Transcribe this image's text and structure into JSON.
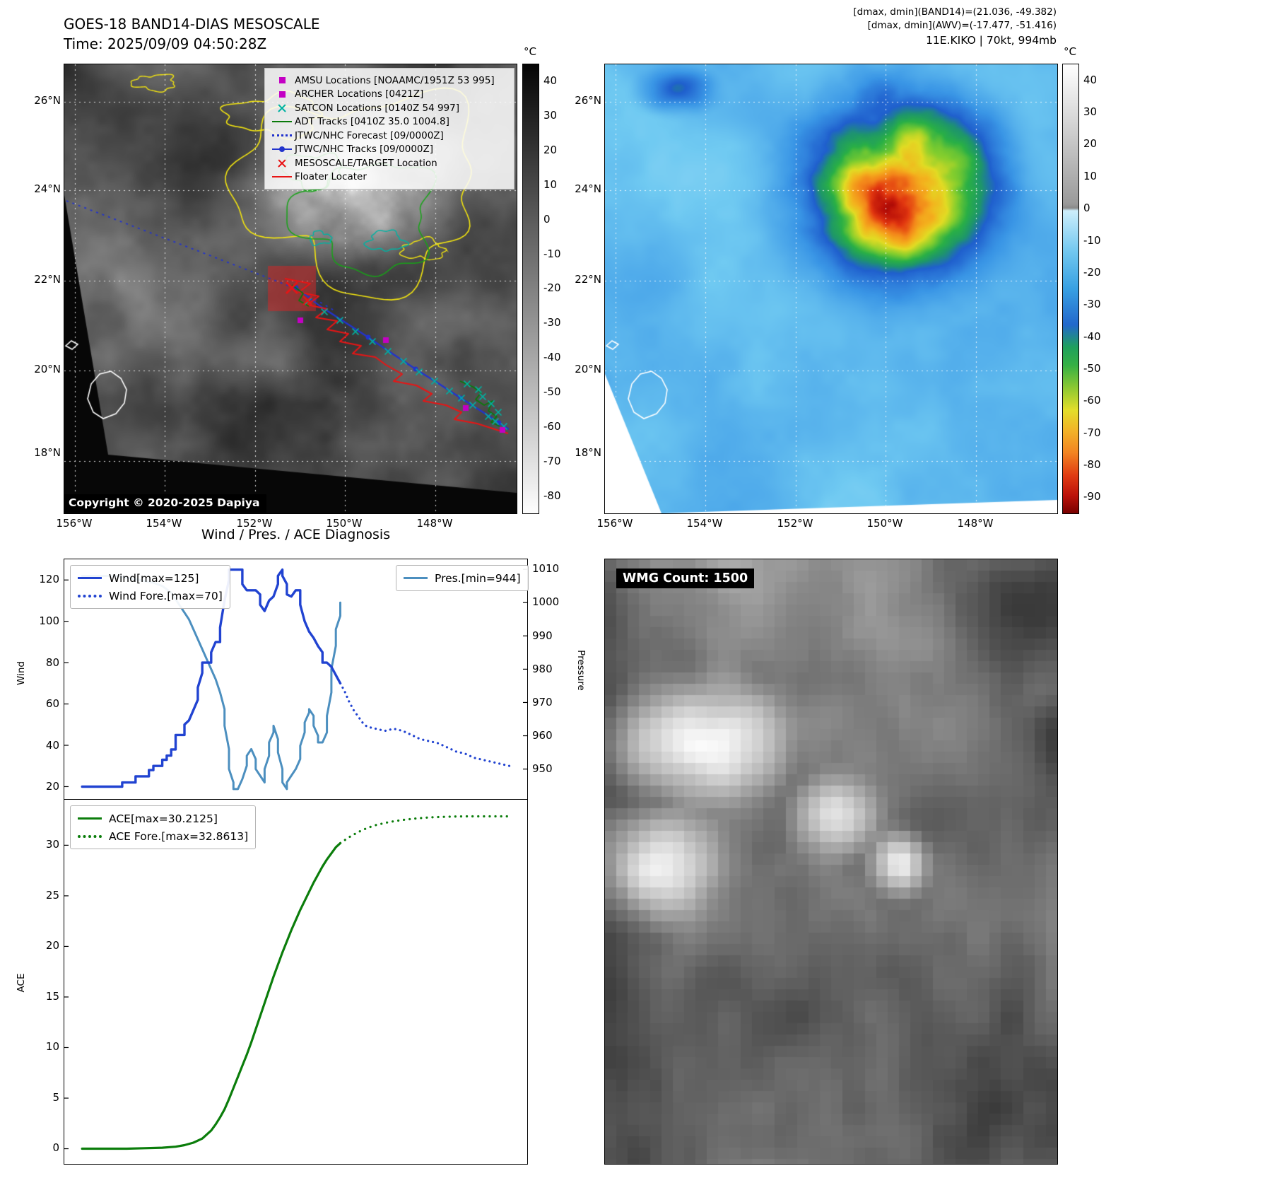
{
  "panel_tl": {
    "title_line1": "GOES-18 BAND14-DIAS MESOSCALE",
    "title_line2": "Time: 2025/09/09 04:50:28Z",
    "copyright": "Copyright © 2020-2025 Dapiya",
    "colorbar_unit": "°C",
    "lat_ticks": [
      "26°N",
      "24°N",
      "22°N",
      "20°N",
      "18°N"
    ],
    "lon_ticks": [
      "156°W",
      "154°W",
      "152°W",
      "150°W",
      "148°W"
    ],
    "colorbar_ticks": [
      "40",
      "30",
      "20",
      "10",
      "0",
      "-10",
      "-20",
      "-30",
      "-40",
      "-50",
      "-60",
      "-70",
      "-80"
    ],
    "legend": [
      {
        "marker": "magenta-square",
        "label": "AMSU Locations [NOAAMC/1951Z 53 995]"
      },
      {
        "marker": "magenta-square",
        "label": "ARCHER Locations [0421Z]"
      },
      {
        "marker": "teal-x",
        "label": "SATCON Locations [0140Z 54 997]"
      },
      {
        "marker": "green-line",
        "label": "ADT Tracks [0410Z 35.0 1004.8]"
      },
      {
        "marker": "blue-dotted-line",
        "label": "JTWC/NHC Forecast [09/0000Z]"
      },
      {
        "marker": "blue-line-dot",
        "label": "JTWC/NHC Tracks [09/0000Z]"
      },
      {
        "marker": "red-x",
        "label": "MESOSCALE/TARGET Location"
      },
      {
        "marker": "red-line",
        "label": "Floater Locater"
      }
    ]
  },
  "panel_tr": {
    "header_line1": "[dmax, dmin](BAND14)=(21.036, -49.382)",
    "header_line2": "[dmax, dmin](AWV)=(-17.477, -51.416)",
    "header_line3": "11E.KIKO | 70kt, 994mb",
    "colorbar_unit": "°C",
    "lat_ticks": [
      "26°N",
      "24°N",
      "22°N",
      "20°N",
      "18°N"
    ],
    "lon_ticks": [
      "156°W",
      "154°W",
      "152°W",
      "150°W",
      "148°W"
    ],
    "colorbar_ticks": [
      "40",
      "30",
      "20",
      "10",
      "0",
      "-10",
      "-20",
      "-30",
      "-40",
      "-50",
      "-60",
      "-70",
      "-80",
      "-90"
    ]
  },
  "charts": {
    "title": "Wind / Pres. / ACE Diagnosis",
    "wind": {
      "ylabel": "Wind",
      "y2label": "Pressure",
      "yticks": [
        "120",
        "100",
        "80",
        "60",
        "40",
        "20"
      ],
      "y2ticks": [
        "1010",
        "1000",
        "990",
        "980",
        "970",
        "960",
        "950"
      ],
      "legend_wind": "Wind[max=125]",
      "legend_wind_fore": "Wind Fore.[max=70]",
      "legend_pres": "Pres.[min=944]"
    },
    "ace": {
      "ylabel": "ACE",
      "yticks": [
        "30",
        "25",
        "20",
        "15",
        "10",
        "5",
        "0"
      ],
      "legend_ace": "ACE[max=30.2125]",
      "legend_ace_fore": "ACE Fore.[max=32.8613]"
    }
  },
  "panel_br": {
    "label": "WMG Count: 1500"
  },
  "colors": {
    "wind": "#2143d1",
    "pres": "#4c8fbf",
    "ace": "#0b7d0b",
    "contour_yellow": "#f2e410",
    "contour_green": "#17a317",
    "contour_teal": "#00b2a2",
    "track_red": "#e81515",
    "track_blue": "#2233cc",
    "satcon_teal": "#00b2a2",
    "amsu_magenta": "#c400c4",
    "adt_green": "#0a7a0a",
    "grid_white": "#ffffff"
  },
  "chart_data": [
    {
      "type": "line",
      "title": "Wind / Pres. / ACE Diagnosis",
      "ylabel": "Wind",
      "y2label": "Pressure",
      "ylim": [
        14,
        130
      ],
      "y2lim": [
        941,
        1013
      ],
      "xlim": [
        0,
        104
      ],
      "series": [
        {
          "name": "Wind[max=125]",
          "axis": "wind",
          "style": "solid",
          "points": [
            [
              4,
              20
            ],
            [
              13,
              20
            ],
            [
              13,
              22
            ],
            [
              16,
              22
            ],
            [
              16,
              25
            ],
            [
              19,
              25
            ],
            [
              19,
              28
            ],
            [
              20,
              28
            ],
            [
              20,
              30
            ],
            [
              22,
              30
            ],
            [
              22,
              33
            ],
            [
              23,
              33
            ],
            [
              23,
              35
            ],
            [
              24,
              35
            ],
            [
              24,
              38
            ],
            [
              25,
              38
            ],
            [
              25,
              45
            ],
            [
              27,
              45
            ],
            [
              27,
              50
            ],
            [
              28,
              52
            ],
            [
              29,
              57
            ],
            [
              30,
              62
            ],
            [
              30,
              68
            ],
            [
              31,
              75
            ],
            [
              31,
              80
            ],
            [
              33,
              80
            ],
            [
              33,
              85
            ],
            [
              34,
              90
            ],
            [
              35,
              90
            ],
            [
              35,
              97
            ],
            [
              36,
              110
            ],
            [
              37,
              120
            ],
            [
              37,
              125
            ],
            [
              40,
              125
            ],
            [
              40,
              118
            ],
            [
              41,
              115
            ],
            [
              43,
              115
            ],
            [
              44,
              113
            ],
            [
              44,
              108
            ],
            [
              45,
              105
            ],
            [
              46,
              110
            ],
            [
              47,
              112
            ],
            [
              48,
              118
            ],
            [
              48,
              122
            ],
            [
              49,
              125
            ],
            [
              49,
              122
            ],
            [
              50,
              118
            ],
            [
              50,
              113
            ],
            [
              51,
              112
            ],
            [
              52,
              115
            ],
            [
              53,
              115
            ],
            [
              53,
              108
            ],
            [
              54,
              100
            ],
            [
              55,
              95
            ],
            [
              56,
              92
            ],
            [
              57,
              88
            ],
            [
              58,
              85
            ],
            [
              58,
              80
            ],
            [
              59,
              80
            ],
            [
              60,
              78
            ],
            [
              61,
              74
            ],
            [
              62,
              70
            ]
          ]
        },
        {
          "name": "Wind Fore.[max=70]",
          "axis": "wind",
          "style": "dotted",
          "points": [
            [
              62,
              70
            ],
            [
              63,
              66
            ],
            [
              64,
              61
            ],
            [
              65,
              57
            ],
            [
              66,
              54
            ],
            [
              67,
              51
            ],
            [
              68,
              49
            ],
            [
              70,
              48
            ],
            [
              72,
              47
            ],
            [
              74,
              48
            ],
            [
              76,
              47
            ],
            [
              78,
              45
            ],
            [
              80,
              43
            ],
            [
              82,
              42
            ],
            [
              84,
              41
            ],
            [
              86,
              39
            ],
            [
              88,
              37
            ],
            [
              90,
              36
            ],
            [
              92,
              34
            ],
            [
              94,
              33
            ],
            [
              96,
              32
            ],
            [
              98,
              31
            ],
            [
              100,
              30
            ]
          ]
        },
        {
          "name": "Pres.[min=944]",
          "axis": "pressure",
          "style": "solid",
          "points": [
            [
              4,
              1008
            ],
            [
              12,
              1008
            ],
            [
              16,
              1007
            ],
            [
              20,
              1006
            ],
            [
              22,
              1005
            ],
            [
              24,
              1003
            ],
            [
              25,
              1001
            ],
            [
              26,
              999
            ],
            [
              27,
              997
            ],
            [
              28,
              995
            ],
            [
              29,
              992
            ],
            [
              30,
              989
            ],
            [
              31,
              986
            ],
            [
              32,
              983
            ],
            [
              33,
              980
            ],
            [
              34,
              977
            ],
            [
              35,
              973
            ],
            [
              36,
              968
            ],
            [
              36,
              963
            ],
            [
              37,
              956
            ],
            [
              37,
              950
            ],
            [
              38,
              946
            ],
            [
              38,
              944
            ],
            [
              39,
              944
            ],
            [
              40,
              947
            ],
            [
              41,
              951
            ],
            [
              41,
              954
            ],
            [
              42,
              956
            ],
            [
              43,
              953
            ],
            [
              43,
              950
            ],
            [
              44,
              948
            ],
            [
              45,
              946
            ],
            [
              45,
              950
            ],
            [
              46,
              954
            ],
            [
              46,
              958
            ],
            [
              47,
              961
            ],
            [
              47,
              963
            ],
            [
              48,
              959
            ],
            [
              48,
              955
            ],
            [
              49,
              950
            ],
            [
              49,
              946
            ],
            [
              50,
              944
            ],
            [
              50,
              946
            ],
            [
              51,
              948
            ],
            [
              52,
              950
            ],
            [
              53,
              953
            ],
            [
              53,
              957
            ],
            [
              54,
              961
            ],
            [
              54,
              964
            ],
            [
              55,
              967
            ],
            [
              55,
              968
            ],
            [
              56,
              966
            ],
            [
              56,
              963
            ],
            [
              57,
              960
            ],
            [
              57,
              958
            ],
            [
              58,
              958
            ],
            [
              59,
              961
            ],
            [
              59,
              966
            ],
            [
              60,
              973
            ],
            [
              60,
              980
            ],
            [
              61,
              987
            ],
            [
              61,
              992
            ],
            [
              62,
              996
            ],
            [
              62,
              1000
            ]
          ]
        }
      ]
    },
    {
      "type": "line",
      "ylabel": "ACE",
      "ylim": [
        -1.5,
        34.5
      ],
      "xlim": [
        0,
        104
      ],
      "series": [
        {
          "name": "ACE[max=30.2125]",
          "style": "solid",
          "points": [
            [
              4,
              0
            ],
            [
              14,
              0
            ],
            [
              18,
              0.05
            ],
            [
              22,
              0.1
            ],
            [
              25,
              0.2
            ],
            [
              27,
              0.35
            ],
            [
              29,
              0.6
            ],
            [
              31,
              1.0
            ],
            [
              33,
              1.8
            ],
            [
              34,
              2.4
            ],
            [
              35,
              3.1
            ],
            [
              36,
              3.9
            ],
            [
              37,
              4.9
            ],
            [
              38,
              6.0
            ],
            [
              39,
              7.1
            ],
            [
              40,
              8.2
            ],
            [
              41,
              9.3
            ],
            [
              42,
              10.5
            ],
            [
              43,
              11.8
            ],
            [
              44,
              13.1
            ],
            [
              45,
              14.4
            ],
            [
              46,
              15.7
            ],
            [
              47,
              17.0
            ],
            [
              48,
              18.2
            ],
            [
              49,
              19.4
            ],
            [
              50,
              20.5
            ],
            [
              51,
              21.6
            ],
            [
              52,
              22.6
            ],
            [
              53,
              23.6
            ],
            [
              54,
              24.5
            ],
            [
              55,
              25.4
            ],
            [
              56,
              26.3
            ],
            [
              57,
              27.1
            ],
            [
              58,
              27.9
            ],
            [
              59,
              28.6
            ],
            [
              60,
              29.2
            ],
            [
              61,
              29.8
            ],
            [
              62,
              30.21
            ]
          ]
        },
        {
          "name": "ACE Fore.[max=32.8613]",
          "style": "dotted",
          "points": [
            [
              62,
              30.21
            ],
            [
              64,
              30.8
            ],
            [
              66,
              31.3
            ],
            [
              68,
              31.7
            ],
            [
              70,
              32.0
            ],
            [
              73,
              32.3
            ],
            [
              76,
              32.5
            ],
            [
              79,
              32.65
            ],
            [
              82,
              32.75
            ],
            [
              86,
              32.82
            ],
            [
              90,
              32.86
            ],
            [
              94,
              32.86
            ],
            [
              100,
              32.86
            ]
          ]
        }
      ]
    }
  ]
}
